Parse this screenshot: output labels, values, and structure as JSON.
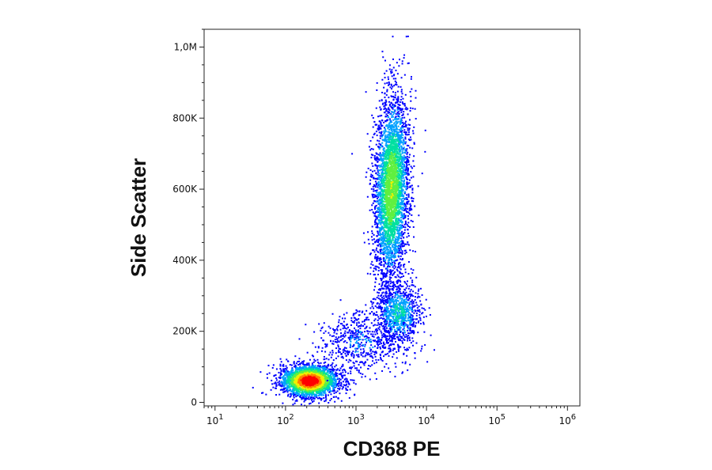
{
  "chart_data": {
    "type": "scatter",
    "subtype": "density-colored flow cytometry dot plot",
    "xlabel": "CD368 PE",
    "ylabel": "Side Scatter",
    "x_scale": "log",
    "y_scale": "linear",
    "xlim": [
      7,
      1500000
    ],
    "ylim": [
      -10000,
      1050000
    ],
    "x_ticks": [
      {
        "value": 10,
        "base": "10",
        "exp": "1"
      },
      {
        "value": 100,
        "base": "10",
        "exp": "2"
      },
      {
        "value": 1000,
        "base": "10",
        "exp": "3"
      },
      {
        "value": 10000,
        "base": "10",
        "exp": "4"
      },
      {
        "value": 100000,
        "base": "10",
        "exp": "5"
      },
      {
        "value": 1000000,
        "base": "10",
        "exp": "6"
      }
    ],
    "y_ticks": [
      {
        "value": 0,
        "label": "0"
      },
      {
        "value": 200000,
        "label": "200K"
      },
      {
        "value": 400000,
        "label": "400K"
      },
      {
        "value": 600000,
        "label": "600K"
      },
      {
        "value": 800000,
        "label": "800K"
      },
      {
        "value": 1000000,
        "label": "1,0M"
      }
    ],
    "grid": false,
    "legend": "none",
    "color_scale": [
      "#0000ff",
      "#00a0ff",
      "#00e0a0",
      "#60f040",
      "#f0f000",
      "#ff8000",
      "#ff0000"
    ],
    "populations": [
      {
        "x_center": 220,
        "y_center": 60000,
        "x_spread_decades": 0.2,
        "y_spread": 22000,
        "count": 2600,
        "peak_density": 1.0
      },
      {
        "x_center": 3200,
        "y_center": 600000,
        "x_spread_decades": 0.12,
        "y_spread": 130000,
        "count": 3600,
        "peak_density": 0.55
      },
      {
        "x_center": 4000,
        "y_center": 250000,
        "x_spread_decades": 0.16,
        "y_spread": 45000,
        "count": 900,
        "peak_density": 0.3
      },
      {
        "x_center": 1200,
        "y_center": 170000,
        "x_spread_decades": 0.3,
        "y_spread": 45000,
        "count": 600,
        "peak_density": 0.15
      }
    ]
  }
}
